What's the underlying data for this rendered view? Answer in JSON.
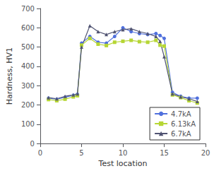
{
  "chart_data": {
    "type": "line",
    "xlabel": "Test location",
    "ylabel": "Hardness, HV1",
    "x": [
      1,
      2,
      3,
      4,
      4.5,
      5,
      6,
      7,
      8,
      9,
      10,
      11,
      12,
      13,
      14,
      14.5,
      15,
      16,
      17,
      18,
      19
    ],
    "series": [
      {
        "name": "4.7kA",
        "marker": "circle",
        "values": [
          235,
          230,
          240,
          250,
          255,
          520,
          555,
          525,
          520,
          555,
          600,
          580,
          570,
          565,
          570,
          560,
          545,
          265,
          245,
          235,
          235
        ]
      },
      {
        "name": "6.13kA",
        "marker": "square",
        "values": [
          228,
          222,
          230,
          242,
          248,
          510,
          545,
          515,
          508,
          525,
          530,
          535,
          528,
          525,
          535,
          510,
          505,
          252,
          238,
          222,
          210
        ]
      },
      {
        "name": "6.7kA",
        "marker": "triangle",
        "values": [
          238,
          232,
          245,
          252,
          258,
          500,
          610,
          580,
          565,
          580,
          590,
          595,
          580,
          570,
          555,
          530,
          450,
          258,
          242,
          232,
          218
        ]
      }
    ],
    "xlim": [
      0,
      20
    ],
    "xticks": [
      0,
      5,
      10,
      15,
      20
    ],
    "ylim": [
      0,
      700
    ],
    "yticks": [
      0,
      100,
      200,
      300,
      400,
      500,
      600,
      700
    ],
    "grid": false,
    "legend": "lower right"
  }
}
